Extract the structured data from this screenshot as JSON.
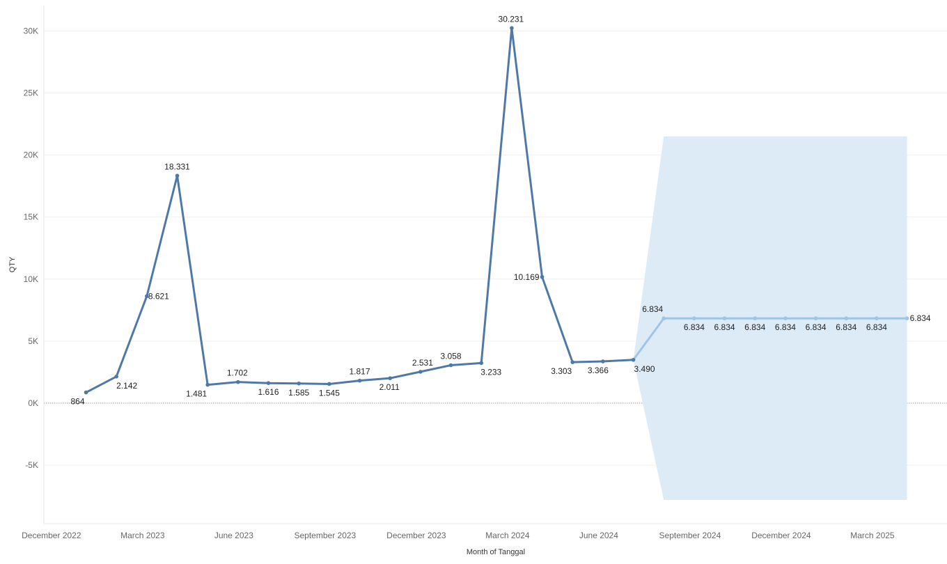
{
  "chart_data": {
    "type": "line",
    "xlabel": "Month of Tanggal",
    "ylabel": "QTY",
    "ylim": [
      -9500,
      32000
    ],
    "grid": true,
    "legend": "none",
    "y_ticks": [
      {
        "value": 30000,
        "label": "30K"
      },
      {
        "value": 25000,
        "label": "25K"
      },
      {
        "value": 20000,
        "label": "20K"
      },
      {
        "value": 15000,
        "label": "15K"
      },
      {
        "value": 10000,
        "label": "10K"
      },
      {
        "value": 5000,
        "label": "5K"
      },
      {
        "value": 0,
        "label": "0K"
      },
      {
        "value": -5000,
        "label": "-5K"
      }
    ],
    "x_ticks": [
      {
        "date": "2022-12",
        "label": "December 2022"
      },
      {
        "date": "2023-03",
        "label": "March 2023"
      },
      {
        "date": "2023-06",
        "label": "June 2023"
      },
      {
        "date": "2023-09",
        "label": "September 2023"
      },
      {
        "date": "2023-12",
        "label": "December 2023"
      },
      {
        "date": "2024-03",
        "label": "March 2024"
      },
      {
        "date": "2024-06",
        "label": "June 2024"
      },
      {
        "date": "2024-09",
        "label": "September 2024"
      },
      {
        "date": "2024-12",
        "label": "December 2024"
      },
      {
        "date": "2025-03",
        "label": "March 2025"
      }
    ],
    "series": [
      {
        "role": "actual",
        "color": "#4e79a7",
        "points": [
          {
            "x": "2023-01",
            "y": 864,
            "label": "864"
          },
          {
            "x": "2023-02",
            "y": 2142,
            "label": "2.142"
          },
          {
            "x": "2023-03",
            "y": 8621,
            "label": "8.621"
          },
          {
            "x": "2023-04",
            "y": 18331,
            "label": "18.331"
          },
          {
            "x": "2023-05",
            "y": 1481,
            "label": "1.481"
          },
          {
            "x": "2023-06",
            "y": 1702,
            "label": "1.702"
          },
          {
            "x": "2023-07",
            "y": 1616,
            "label": "1.616"
          },
          {
            "x": "2023-08",
            "y": 1585,
            "label": "1.585"
          },
          {
            "x": "2023-09",
            "y": 1545,
            "label": "1.545"
          },
          {
            "x": "2023-10",
            "y": 1817,
            "label": "1.817"
          },
          {
            "x": "2023-11",
            "y": 2011,
            "label": "2.011"
          },
          {
            "x": "2023-12",
            "y": 2531,
            "label": "2.531"
          },
          {
            "x": "2024-01",
            "y": 3058,
            "label": "3.058"
          },
          {
            "x": "2024-02",
            "y": 3233,
            "label": "3.233"
          },
          {
            "x": "2024-03",
            "y": 30231,
            "label": "30.231"
          },
          {
            "x": "2024-04",
            "y": 10169,
            "label": "10.169"
          },
          {
            "x": "2024-05",
            "y": 3303,
            "label": "3.303"
          },
          {
            "x": "2024-06",
            "y": 3366,
            "label": "3.366"
          },
          {
            "x": "2024-07",
            "y": 3490,
            "label": "3.490"
          }
        ]
      },
      {
        "role": "forecast",
        "color": "#a0c4e4",
        "points": [
          {
            "x": "2024-07",
            "y": 3490,
            "label": ""
          },
          {
            "x": "2024-08",
            "y": 6834,
            "label": "6.834"
          },
          {
            "x": "2024-09",
            "y": 6834,
            "label": "6.834"
          },
          {
            "x": "2024-10",
            "y": 6834,
            "label": "6.834"
          },
          {
            "x": "2024-11",
            "y": 6834,
            "label": "6.834"
          },
          {
            "x": "2024-12",
            "y": 6834,
            "label": "6.834"
          },
          {
            "x": "2025-01",
            "y": 6834,
            "label": "6.834"
          },
          {
            "x": "2025-02",
            "y": 6834,
            "label": "6.834"
          },
          {
            "x": "2025-03",
            "y": 6834,
            "label": "6.834"
          },
          {
            "x": "2025-04",
            "y": 6834,
            "label": "6.834"
          }
        ]
      }
    ],
    "prediction_band": {
      "color": "#ddebf7",
      "start": {
        "x": "2024-07",
        "y": 3490
      },
      "from": "2024-08",
      "to": "2025-04",
      "upper": 21500,
      "lower": -7800
    }
  }
}
